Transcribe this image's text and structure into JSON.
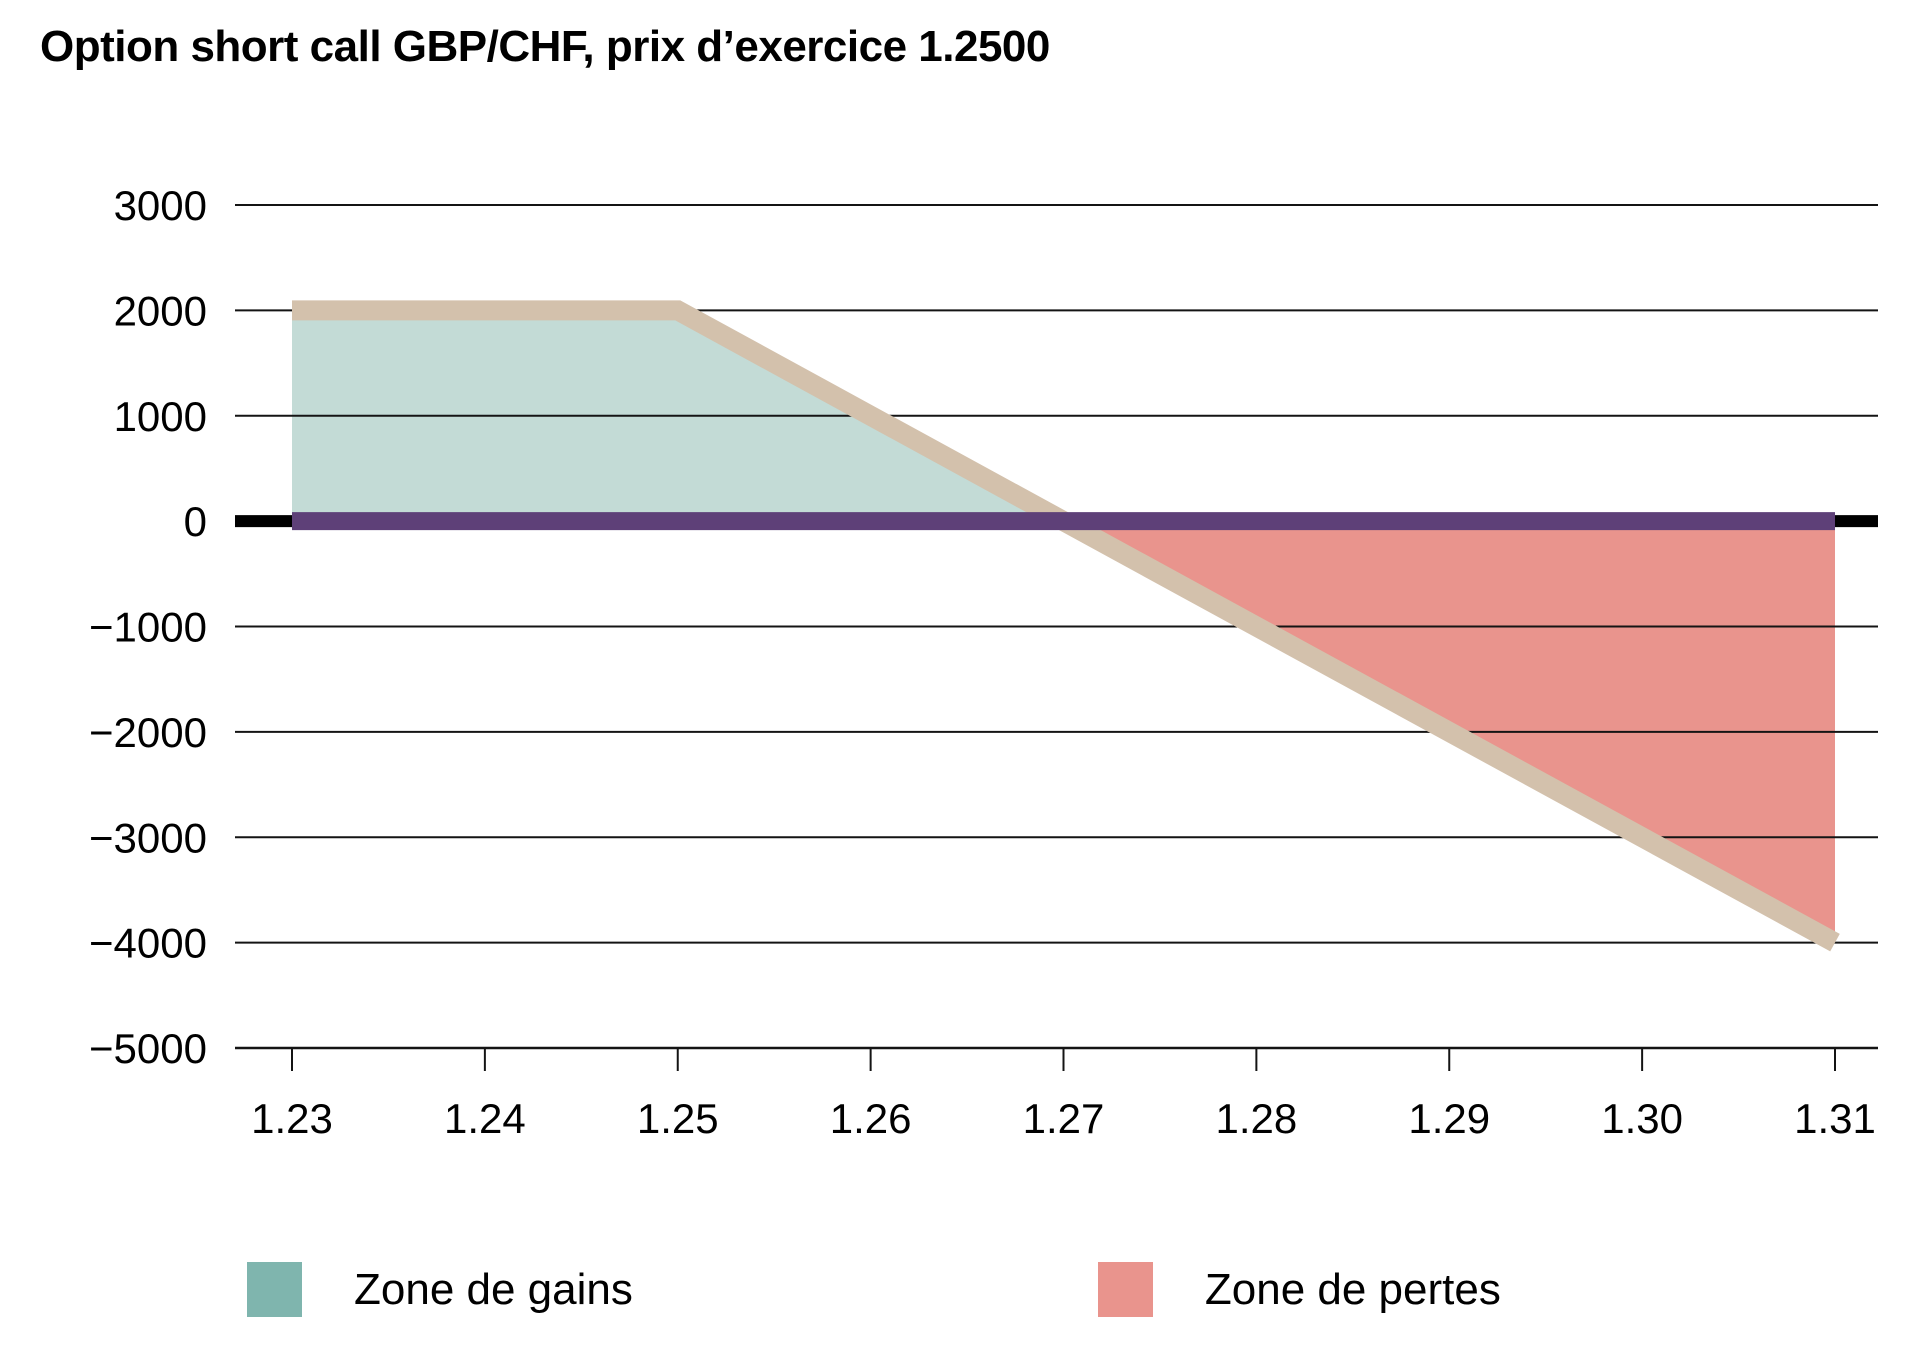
{
  "title": "Option short call GBP/CHF, prix d’exercice 1.2500",
  "chart_data": {
    "type": "area",
    "title": "Option short call GBP/CHF, prix d’exercice 1.2500",
    "xlabel": "",
    "ylabel": "",
    "xlim": [
      1.23,
      1.31
    ],
    "ylim": [
      -5000,
      3000
    ],
    "grid": true,
    "legend_position": "bottom",
    "x_ticks": [
      1.23,
      1.24,
      1.25,
      1.26,
      1.27,
      1.28,
      1.29,
      1.3,
      1.31
    ],
    "x_tick_labels": [
      "1.23",
      "1.24",
      "1.25",
      "1.26",
      "1.27",
      "1.28",
      "1.29",
      "1.30",
      "1.31"
    ],
    "y_ticks": [
      3000,
      2000,
      1000,
      0,
      -1000,
      -2000,
      -3000,
      -4000,
      -5000
    ],
    "y_tick_labels": [
      "3000",
      "2000",
      "1000",
      "0",
      "−1000",
      "−2000",
      "−3000",
      "−4000",
      "−5000"
    ],
    "series": [
      {
        "name": "payoff-short-call",
        "role": "payoff-line",
        "x": [
          1.23,
          1.25,
          1.31
        ],
        "y": [
          2000,
          2000,
          -4000
        ],
        "color": "#D3C1AC"
      },
      {
        "name": "niveau-zero",
        "role": "zero-band",
        "x": [
          1.23,
          1.31
        ],
        "y": [
          0,
          0
        ],
        "color": "#5E4078"
      }
    ],
    "zones": [
      {
        "name": "Zone de gains",
        "polygon": [
          [
            1.23,
            0
          ],
          [
            1.23,
            2000
          ],
          [
            1.25,
            2000
          ],
          [
            1.27,
            0
          ]
        ],
        "color": "#C3DBD6"
      },
      {
        "name": "Zone de pertes",
        "polygon": [
          [
            1.27,
            0
          ],
          [
            1.31,
            -4000
          ],
          [
            1.31,
            0
          ]
        ],
        "color": "#E9948D"
      }
    ]
  },
  "legend": [
    {
      "label": "Zone de gains",
      "color": "#7FB5AE"
    },
    {
      "label": "Zone de pertes",
      "color": "#E9948D"
    }
  ],
  "colors": {
    "background": "#FFFFFF",
    "text": "#000000",
    "gridline": "#141414",
    "zero_axis": "#000000",
    "payoff_line": "#D3C1AC",
    "zero_band": "#5E4078",
    "gains_fill": "#C3DBD6",
    "pertes_fill": "#E9948D"
  }
}
